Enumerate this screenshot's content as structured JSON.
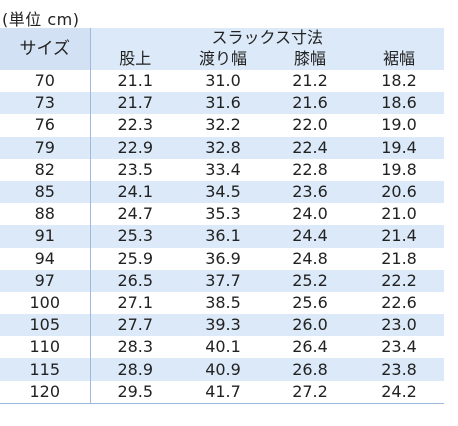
{
  "unit_label": "(単位 cm)",
  "header": {
    "size": "サイズ",
    "group": "スラックス寸法",
    "columns": [
      "股上",
      "渡り幅",
      "膝幅",
      "裾幅"
    ]
  },
  "rows": [
    [
      "70",
      "21.1",
      "31.0",
      "21.2",
      "18.2"
    ],
    [
      "73",
      "21.7",
      "31.6",
      "21.6",
      "18.6"
    ],
    [
      "76",
      "22.3",
      "32.2",
      "22.0",
      "19.0"
    ],
    [
      "79",
      "22.9",
      "32.8",
      "22.4",
      "19.4"
    ],
    [
      "82",
      "23.5",
      "33.4",
      "22.8",
      "19.8"
    ],
    [
      "85",
      "24.1",
      "34.5",
      "23.6",
      "20.6"
    ],
    [
      "88",
      "24.7",
      "35.3",
      "24.0",
      "21.0"
    ],
    [
      "91",
      "25.3",
      "36.1",
      "24.4",
      "21.4"
    ],
    [
      "94",
      "25.9",
      "36.9",
      "24.8",
      "21.8"
    ],
    [
      "97",
      "26.5",
      "37.7",
      "25.2",
      "22.2"
    ],
    [
      "100",
      "27.1",
      "38.5",
      "25.6",
      "22.6"
    ],
    [
      "105",
      "27.7",
      "39.3",
      "26.0",
      "23.0"
    ],
    [
      "110",
      "28.3",
      "40.1",
      "26.4",
      "23.4"
    ],
    [
      "115",
      "28.9",
      "40.9",
      "26.8",
      "23.8"
    ],
    [
      "120",
      "29.5",
      "41.7",
      "27.2",
      "24.2"
    ]
  ]
}
